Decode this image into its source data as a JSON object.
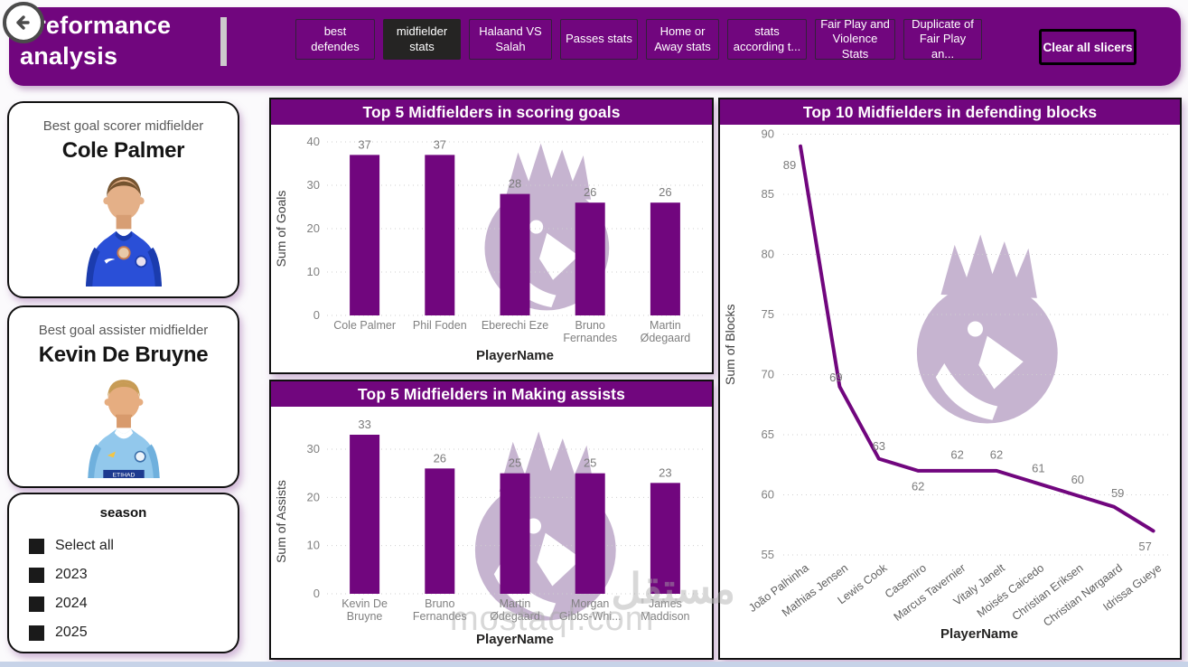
{
  "header": {
    "title_line1": "Preformance",
    "title_line2": "analysis",
    "nav_tabs": [
      {
        "label": "best defendes",
        "selected": false
      },
      {
        "label": "midfielder stats",
        "selected": true
      },
      {
        "label": "Halaand VS Salah",
        "selected": false
      },
      {
        "label": "Passes stats",
        "selected": false
      },
      {
        "label": "Home or Away stats",
        "selected": false
      },
      {
        "label": "stats according t...",
        "selected": false
      },
      {
        "label": "Fair Play and Violence Stats",
        "selected": false
      },
      {
        "label": "Duplicate of Fair Play an...",
        "selected": false
      }
    ],
    "clear_button_label": "Clear all slicers"
  },
  "cards": {
    "scorer": {
      "subtitle": "Best goal scorer midfielder",
      "name": "Cole Palmer",
      "shirt_color": "#2a4fd7",
      "shirt_accent": "#1b3cae"
    },
    "assister": {
      "subtitle": "Best goal assister midfielder",
      "name": "Kevin De Bruyne",
      "shirt_color": "#92c8ec",
      "shirt_accent": "#ffffff"
    }
  },
  "season_slicer": {
    "title": "season",
    "options": [
      "Select all",
      "2023",
      "2024",
      "2025"
    ]
  },
  "chart_data": [
    {
      "type": "bar",
      "title": "Top 5 Midfielders in scoring goals",
      "categories": [
        "Cole Palmer",
        "Phil Foden",
        "Eberechi Eze",
        "Bruno Fernandes",
        "Martin Ødegaard"
      ],
      "values": [
        37,
        37,
        28,
        26,
        26
      ],
      "xlabel": "PlayerName",
      "ylabel": "Sum of Goals",
      "ylim": [
        0,
        40
      ],
      "ytick_step": 10,
      "grid": true,
      "legend": "none",
      "bar_color": "#71067E"
    },
    {
      "type": "bar",
      "title": "Top 5 Midfielders in Making assists",
      "categories": [
        "Kevin De Bruyne",
        "Bruno Fernandes",
        "Martin Ødegaard",
        "Morgan Gibbs-Whi...",
        "James Maddison"
      ],
      "values": [
        33,
        26,
        25,
        25,
        23
      ],
      "xlabel": "PlayerName",
      "ylabel": "Sum of Assists",
      "ylim": [
        0,
        30
      ],
      "ytick_step": 10,
      "grid": true,
      "legend": "none",
      "bar_color": "#71067E"
    },
    {
      "type": "line",
      "title": "Top 10 Midfielders in defending blocks",
      "categories": [
        "João Palhinha",
        "Mathias Jensen",
        "Lewis Cook",
        "Casemiro",
        "Marcus Tavernier",
        "Vitaly Janelt",
        "Moisés Caicedo",
        "Christian Eriksen",
        "Christian Nørgaard",
        "Idrissa Gueye"
      ],
      "values": [
        89,
        69,
        63,
        62,
        62,
        62,
        61,
        60,
        59,
        57
      ],
      "xlabel": "PlayerName",
      "ylabel": "Sum of Blocks",
      "ylim": [
        55,
        90
      ],
      "ytick_step": 5,
      "grid": true,
      "legend": "none",
      "line_color": "#71067E"
    }
  ],
  "watermark": {
    "arabic": "مستقل",
    "domain": "mostaql.com"
  },
  "colors": {
    "accent": "#71067E",
    "selected_tab": "#252423",
    "lion_watermark": "#c6b4d0",
    "grid": "#cfcfcf",
    "tick_text": "#808080"
  }
}
